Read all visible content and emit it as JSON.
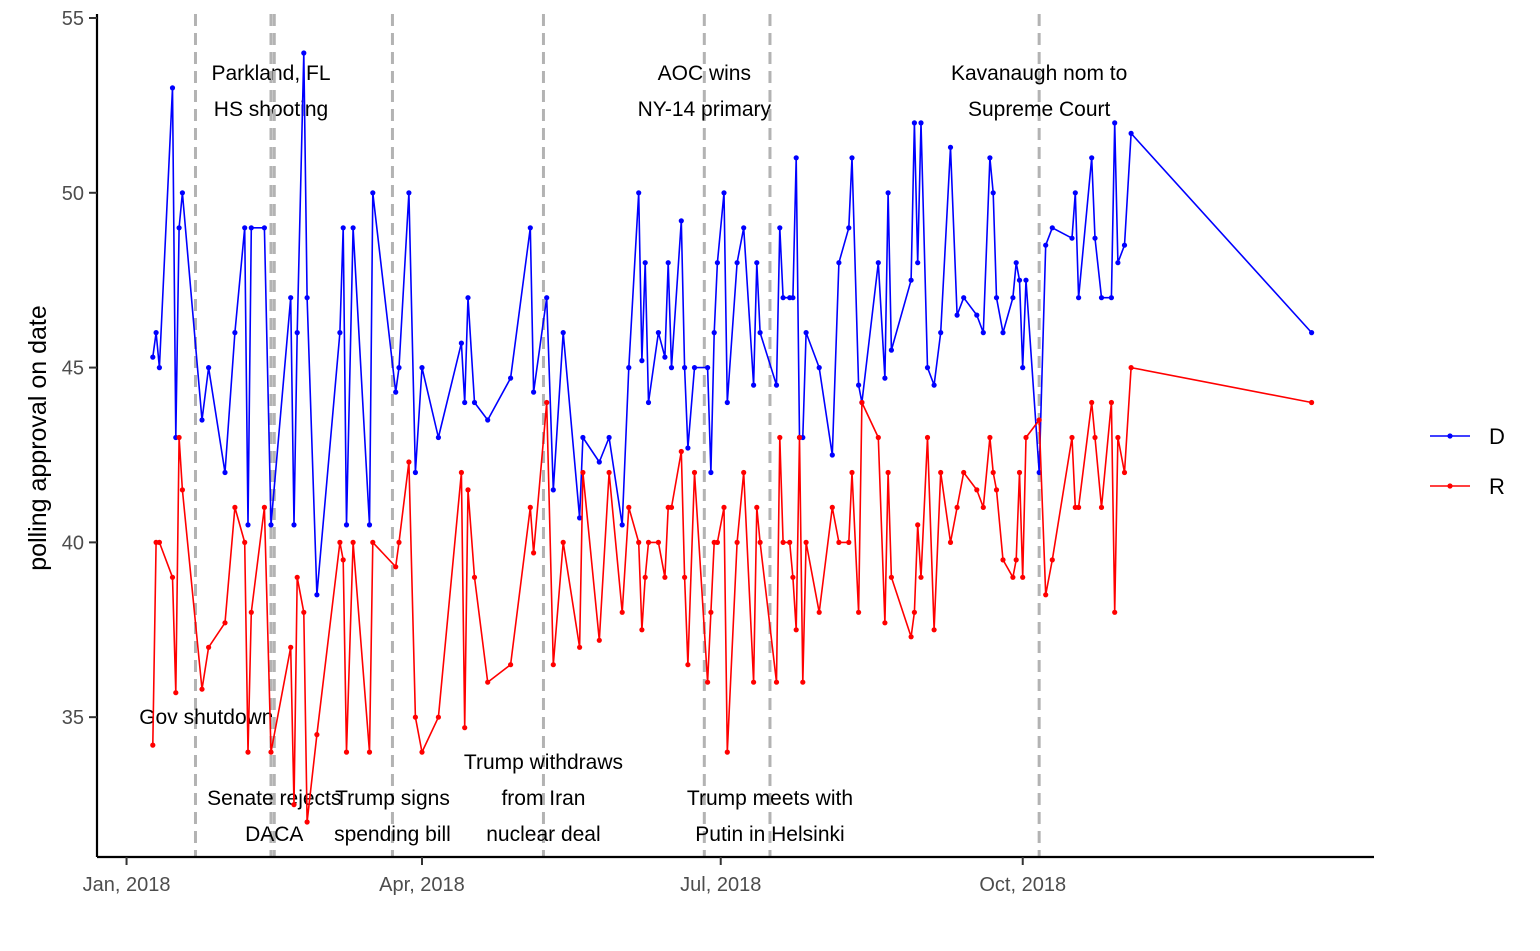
{
  "chart_data": {
    "type": "line",
    "ylabel": "polling approval on date",
    "xlabel": "",
    "ylim": [
      31,
      55
    ],
    "xlim": [
      "2017-12-23",
      "2019-01-16"
    ],
    "grid": false,
    "legend_position": "right",
    "y_ticks": [
      35,
      40,
      45,
      50,
      55
    ],
    "x_ticks": [
      {
        "date": "2018-01-01",
        "label": "Jan, 2018"
      },
      {
        "date": "2018-04-01",
        "label": "Apr, 2018"
      },
      {
        "date": "2018-07-01",
        "label": "Jul, 2018"
      },
      {
        "date": "2018-10-01",
        "label": "Oct, 2018"
      }
    ],
    "events": [
      {
        "date": "2018-01-22",
        "lines": [
          "Gov shutdown"
        ],
        "position": "bottom-left"
      },
      {
        "date": "2018-02-14",
        "lines": [
          "Parkland, FL",
          "HS shooting"
        ],
        "position": "top"
      },
      {
        "date": "2018-02-15",
        "lines": [
          "Senate rejects",
          "DACA"
        ],
        "position": "bottom"
      },
      {
        "date": "2018-03-23",
        "lines": [
          "Trump signs",
          "spending bill"
        ],
        "position": "bottom"
      },
      {
        "date": "2018-05-08",
        "lines": [
          "Trump withdraws",
          "from Iran",
          "nuclear deal"
        ],
        "position": "bottom"
      },
      {
        "date": "2018-06-26",
        "lines": [
          "AOC wins",
          "NY-14 primary"
        ],
        "position": "top"
      },
      {
        "date": "2018-07-16",
        "lines": [
          "Trump meets with",
          "Putin in Helsinki"
        ],
        "position": "bottom"
      },
      {
        "date": "2018-10-06",
        "lines": [
          "Kavanaugh nom to",
          "Supreme Court"
        ],
        "position": "top"
      }
    ],
    "series": [
      {
        "name": "D",
        "color": "#0000ff",
        "points": [
          [
            "2018-01-09",
            45.3
          ],
          [
            "2018-01-10",
            46
          ],
          [
            "2018-01-11",
            45
          ],
          [
            "2018-01-15",
            53
          ],
          [
            "2018-01-16",
            43
          ],
          [
            "2018-01-17",
            49
          ],
          [
            "2018-01-18",
            50
          ],
          [
            "2018-01-24",
            43.5
          ],
          [
            "2018-01-26",
            45
          ],
          [
            "2018-01-31",
            42
          ],
          [
            "2018-02-03",
            46
          ],
          [
            "2018-02-06",
            49
          ],
          [
            "2018-02-07",
            40.5
          ],
          [
            "2018-02-08",
            49
          ],
          [
            "2018-02-12",
            49
          ],
          [
            "2018-02-14",
            40.5
          ],
          [
            "2018-02-20",
            47
          ],
          [
            "2018-02-21",
            40.5
          ],
          [
            "2018-02-22",
            46
          ],
          [
            "2018-02-24",
            54
          ],
          [
            "2018-02-25",
            47
          ],
          [
            "2018-02-28",
            38.5
          ],
          [
            "2018-03-07",
            46
          ],
          [
            "2018-03-08",
            49
          ],
          [
            "2018-03-09",
            40.5
          ],
          [
            "2018-03-11",
            49
          ],
          [
            "2018-03-16",
            40.5
          ],
          [
            "2018-03-17",
            50
          ],
          [
            "2018-03-24",
            44.3
          ],
          [
            "2018-03-25",
            45
          ],
          [
            "2018-03-28",
            50
          ],
          [
            "2018-03-30",
            42
          ],
          [
            "2018-04-01",
            45
          ],
          [
            "2018-04-06",
            43
          ],
          [
            "2018-04-13",
            45.7
          ],
          [
            "2018-04-14",
            44
          ],
          [
            "2018-04-15",
            47
          ],
          [
            "2018-04-17",
            44
          ],
          [
            "2018-04-21",
            43.5
          ],
          [
            "2018-04-28",
            44.7
          ],
          [
            "2018-05-04",
            49
          ],
          [
            "2018-05-05",
            44.3
          ],
          [
            "2018-05-09",
            47
          ],
          [
            "2018-05-11",
            41.5
          ],
          [
            "2018-05-14",
            46
          ],
          [
            "2018-05-19",
            40.7
          ],
          [
            "2018-05-20",
            43
          ],
          [
            "2018-05-25",
            42.3
          ],
          [
            "2018-05-28",
            43
          ],
          [
            "2018-06-01",
            40.5
          ],
          [
            "2018-06-03",
            45
          ],
          [
            "2018-06-06",
            50
          ],
          [
            "2018-06-07",
            45.2
          ],
          [
            "2018-06-08",
            48
          ],
          [
            "2018-06-09",
            44
          ],
          [
            "2018-06-12",
            46
          ],
          [
            "2018-06-14",
            45.3
          ],
          [
            "2018-06-15",
            48
          ],
          [
            "2018-06-16",
            45
          ],
          [
            "2018-06-19",
            49.2
          ],
          [
            "2018-06-20",
            45
          ],
          [
            "2018-06-21",
            42.7
          ],
          [
            "2018-06-23",
            45
          ],
          [
            "2018-06-27",
            45
          ],
          [
            "2018-06-28",
            42
          ],
          [
            "2018-06-29",
            46
          ],
          [
            "2018-06-30",
            48
          ],
          [
            "2018-07-02",
            50
          ],
          [
            "2018-07-03",
            44
          ],
          [
            "2018-07-06",
            48
          ],
          [
            "2018-07-08",
            49
          ],
          [
            "2018-07-11",
            44.5
          ],
          [
            "2018-07-12",
            48
          ],
          [
            "2018-07-13",
            46
          ],
          [
            "2018-07-18",
            44.5
          ],
          [
            "2018-07-19",
            49
          ],
          [
            "2018-07-20",
            47
          ],
          [
            "2018-07-22",
            47
          ],
          [
            "2018-07-23",
            47
          ],
          [
            "2018-07-24",
            51
          ],
          [
            "2018-07-25",
            43
          ],
          [
            "2018-07-26",
            43
          ],
          [
            "2018-07-27",
            46
          ],
          [
            "2018-07-31",
            45
          ],
          [
            "2018-08-04",
            42.5
          ],
          [
            "2018-08-06",
            48
          ],
          [
            "2018-08-09",
            49
          ],
          [
            "2018-08-10",
            51
          ],
          [
            "2018-08-12",
            44.5
          ],
          [
            "2018-08-13",
            44
          ],
          [
            "2018-08-18",
            48
          ],
          [
            "2018-08-20",
            44.7
          ],
          [
            "2018-08-21",
            50
          ],
          [
            "2018-08-22",
            45.5
          ],
          [
            "2018-08-28",
            47.5
          ],
          [
            "2018-08-29",
            52
          ],
          [
            "2018-08-30",
            48
          ],
          [
            "2018-08-31",
            52
          ],
          [
            "2018-09-02",
            45
          ],
          [
            "2018-09-04",
            44.5
          ],
          [
            "2018-09-06",
            46
          ],
          [
            "2018-09-09",
            51.3
          ],
          [
            "2018-09-11",
            46.5
          ],
          [
            "2018-09-13",
            47
          ],
          [
            "2018-09-17",
            46.5
          ],
          [
            "2018-09-19",
            46
          ],
          [
            "2018-09-21",
            51
          ],
          [
            "2018-09-22",
            50
          ],
          [
            "2018-09-23",
            47
          ],
          [
            "2018-09-25",
            46
          ],
          [
            "2018-09-28",
            47
          ],
          [
            "2018-09-29",
            48
          ],
          [
            "2018-09-30",
            47.5
          ],
          [
            "2018-10-01",
            45
          ],
          [
            "2018-10-02",
            47.5
          ],
          [
            "2018-10-06",
            42
          ],
          [
            "2018-10-08",
            48.5
          ],
          [
            "2018-10-10",
            49
          ],
          [
            "2018-10-16",
            48.7
          ],
          [
            "2018-10-17",
            50
          ],
          [
            "2018-10-18",
            47
          ],
          [
            "2018-10-22",
            51
          ],
          [
            "2018-10-23",
            48.7
          ],
          [
            "2018-10-25",
            47
          ],
          [
            "2018-10-28",
            47
          ],
          [
            "2018-10-29",
            52
          ],
          [
            "2018-10-30",
            48
          ],
          [
            "2018-11-01",
            48.5
          ],
          [
            "2018-11-03",
            51.7
          ],
          [
            "2018-12-28",
            46
          ]
        ]
      },
      {
        "name": "R",
        "color": "#ff0000",
        "points": [
          [
            "2018-01-09",
            34.2
          ],
          [
            "2018-01-10",
            40
          ],
          [
            "2018-01-11",
            40
          ],
          [
            "2018-01-15",
            39
          ],
          [
            "2018-01-16",
            35.7
          ],
          [
            "2018-01-17",
            43
          ],
          [
            "2018-01-18",
            41.5
          ],
          [
            "2018-01-24",
            35.8
          ],
          [
            "2018-01-26",
            37
          ],
          [
            "2018-01-31",
            37.7
          ],
          [
            "2018-02-03",
            41
          ],
          [
            "2018-02-06",
            40
          ],
          [
            "2018-02-07",
            34
          ],
          [
            "2018-02-08",
            38
          ],
          [
            "2018-02-12",
            41
          ],
          [
            "2018-02-14",
            34
          ],
          [
            "2018-02-20",
            37
          ],
          [
            "2018-02-21",
            32.5
          ],
          [
            "2018-02-22",
            39
          ],
          [
            "2018-02-24",
            38
          ],
          [
            "2018-02-25",
            32
          ],
          [
            "2018-02-28",
            34.5
          ],
          [
            "2018-03-07",
            40
          ],
          [
            "2018-03-08",
            39.5
          ],
          [
            "2018-03-09",
            34
          ],
          [
            "2018-03-11",
            40
          ],
          [
            "2018-03-16",
            34
          ],
          [
            "2018-03-17",
            40
          ],
          [
            "2018-03-24",
            39.3
          ],
          [
            "2018-03-25",
            40
          ],
          [
            "2018-03-28",
            42.3
          ],
          [
            "2018-03-30",
            35
          ],
          [
            "2018-04-01",
            34
          ],
          [
            "2018-04-06",
            35
          ],
          [
            "2018-04-13",
            42
          ],
          [
            "2018-04-14",
            34.7
          ],
          [
            "2018-04-15",
            41.5
          ],
          [
            "2018-04-17",
            39
          ],
          [
            "2018-04-21",
            36
          ],
          [
            "2018-04-28",
            36.5
          ],
          [
            "2018-05-04",
            41
          ],
          [
            "2018-05-05",
            39.7
          ],
          [
            "2018-05-09",
            44
          ],
          [
            "2018-05-11",
            36.5
          ],
          [
            "2018-05-14",
            40
          ],
          [
            "2018-05-19",
            37
          ],
          [
            "2018-05-20",
            42
          ],
          [
            "2018-05-25",
            37.2
          ],
          [
            "2018-05-28",
            42
          ],
          [
            "2018-06-01",
            38
          ],
          [
            "2018-06-03",
            41
          ],
          [
            "2018-06-06",
            40
          ],
          [
            "2018-06-07",
            37.5
          ],
          [
            "2018-06-08",
            39
          ],
          [
            "2018-06-09",
            40
          ],
          [
            "2018-06-12",
            40
          ],
          [
            "2018-06-14",
            39
          ],
          [
            "2018-06-15",
            41
          ],
          [
            "2018-06-16",
            41
          ],
          [
            "2018-06-19",
            42.6
          ],
          [
            "2018-06-20",
            39
          ],
          [
            "2018-06-21",
            36.5
          ],
          [
            "2018-06-23",
            42
          ],
          [
            "2018-06-27",
            36
          ],
          [
            "2018-06-28",
            38
          ],
          [
            "2018-06-29",
            40
          ],
          [
            "2018-06-30",
            40
          ],
          [
            "2018-07-02",
            41
          ],
          [
            "2018-07-03",
            34
          ],
          [
            "2018-07-06",
            40
          ],
          [
            "2018-07-08",
            42
          ],
          [
            "2018-07-11",
            36
          ],
          [
            "2018-07-12",
            41
          ],
          [
            "2018-07-13",
            40
          ],
          [
            "2018-07-18",
            36
          ],
          [
            "2018-07-19",
            43
          ],
          [
            "2018-07-20",
            40
          ],
          [
            "2018-07-22",
            40
          ],
          [
            "2018-07-23",
            39
          ],
          [
            "2018-07-24",
            37.5
          ],
          [
            "2018-07-25",
            43
          ],
          [
            "2018-07-26",
            36
          ],
          [
            "2018-07-27",
            40
          ],
          [
            "2018-07-31",
            38
          ],
          [
            "2018-08-04",
            41
          ],
          [
            "2018-08-06",
            40
          ],
          [
            "2018-08-09",
            40
          ],
          [
            "2018-08-10",
            42
          ],
          [
            "2018-08-12",
            38
          ],
          [
            "2018-08-13",
            44
          ],
          [
            "2018-08-18",
            43
          ],
          [
            "2018-08-20",
            37.7
          ],
          [
            "2018-08-21",
            42
          ],
          [
            "2018-08-22",
            39
          ],
          [
            "2018-08-28",
            37.3
          ],
          [
            "2018-08-29",
            38
          ],
          [
            "2018-08-30",
            40.5
          ],
          [
            "2018-08-31",
            39
          ],
          [
            "2018-09-02",
            43
          ],
          [
            "2018-09-04",
            37.5
          ],
          [
            "2018-09-06",
            42
          ],
          [
            "2018-09-09",
            40
          ],
          [
            "2018-09-11",
            41
          ],
          [
            "2018-09-13",
            42
          ],
          [
            "2018-09-17",
            41.5
          ],
          [
            "2018-09-19",
            41
          ],
          [
            "2018-09-21",
            43
          ],
          [
            "2018-09-22",
            42
          ],
          [
            "2018-09-23",
            41.5
          ],
          [
            "2018-09-25",
            39.5
          ],
          [
            "2018-09-28",
            39
          ],
          [
            "2018-09-29",
            39.5
          ],
          [
            "2018-09-30",
            42
          ],
          [
            "2018-10-01",
            39
          ],
          [
            "2018-10-02",
            43
          ],
          [
            "2018-10-06",
            43.5
          ],
          [
            "2018-10-08",
            38.5
          ],
          [
            "2018-10-10",
            39.5
          ],
          [
            "2018-10-16",
            43
          ],
          [
            "2018-10-17",
            41
          ],
          [
            "2018-10-18",
            41
          ],
          [
            "2018-10-22",
            44
          ],
          [
            "2018-10-23",
            43
          ],
          [
            "2018-10-25",
            41
          ],
          [
            "2018-10-28",
            44
          ],
          [
            "2018-10-29",
            38
          ],
          [
            "2018-10-30",
            43
          ],
          [
            "2018-11-01",
            42
          ],
          [
            "2018-11-03",
            45
          ],
          [
            "2018-12-28",
            44
          ]
        ]
      }
    ]
  }
}
